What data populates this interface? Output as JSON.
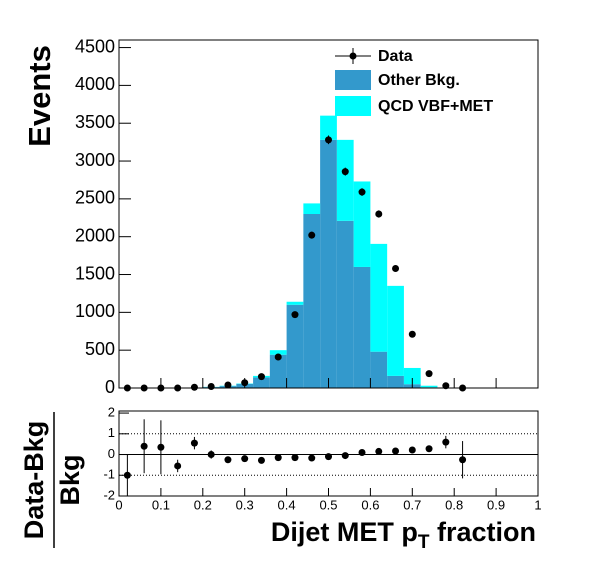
{
  "chart_data": [
    {
      "type": "histogram",
      "ylabel": "Events",
      "bins": [
        0,
        0.04,
        0.08,
        0.12,
        0.16,
        0.2,
        0.24,
        0.28,
        0.32,
        0.36,
        0.4,
        0.44,
        0.48,
        0.52,
        0.56,
        0.6,
        0.64,
        0.68,
        0.72,
        0.76,
        0.8,
        0.84,
        0.88,
        0.92,
        0.96,
        1
      ],
      "xlim": [
        0,
        1
      ],
      "xticks": [
        0,
        0.1,
        0.2,
        0.3,
        0.4,
        0.5,
        0.6,
        0.7,
        0.8,
        0.9,
        1
      ],
      "ylim": [
        0,
        4600
      ],
      "yticks": [
        0,
        500,
        1000,
        1500,
        2000,
        2500,
        3000,
        3500,
        4000,
        4500
      ],
      "stacked": true,
      "legend": "upper right",
      "series": [
        {
          "name": "Other Bkg.",
          "color": "#3399cc",
          "values": [
            0,
            0,
            0,
            0,
            5,
            12,
            25,
            55,
            140,
            440,
            1100,
            2300,
            3280,
            2210,
            1600,
            480,
            160,
            50,
            10,
            0,
            0,
            0,
            0,
            0,
            0
          ]
        },
        {
          "name": "QCD VBF+MET",
          "color": "#00ffff",
          "values": [
            0,
            0,
            0,
            0,
            0,
            3,
            5,
            5,
            20,
            60,
            40,
            140,
            320,
            1070,
            1130,
            1425,
            1190,
            215,
            20,
            5,
            0,
            0,
            0,
            0,
            0
          ]
        }
      ],
      "data": {
        "name": "Data",
        "color": "#000000",
        "x": [
          0.02,
          0.06,
          0.1,
          0.14,
          0.18,
          0.22,
          0.26,
          0.3,
          0.34,
          0.38,
          0.42,
          0.46,
          0.5,
          0.54,
          0.58,
          0.62,
          0.66,
          0.7,
          0.74,
          0.78,
          0.82
        ],
        "values": [
          0,
          0,
          0,
          0,
          10,
          20,
          40,
          70,
          150,
          410,
          970,
          2020,
          3280,
          2860,
          2590,
          2300,
          1580,
          710,
          190,
          30,
          0
        ],
        "errors": [
          0,
          0,
          0,
          0,
          3,
          4,
          6,
          8,
          12,
          20,
          31,
          45,
          57,
          53,
          51,
          48,
          40,
          27,
          14,
          5,
          0
        ]
      }
    },
    {
      "type": "scatter",
      "ylabel_numerator": "Data-Bkg",
      "ylabel_denominator": "Bkg",
      "xlabel_parts": [
        "Dijet MET p",
        "T",
        " fraction"
      ],
      "x": [
        0.02,
        0.06,
        0.1,
        0.14,
        0.18,
        0.22,
        0.26,
        0.3,
        0.34,
        0.38,
        0.42,
        0.46,
        0.5,
        0.54,
        0.58,
        0.62,
        0.66,
        0.7,
        0.74,
        0.78,
        0.82
      ],
      "values": [
        -1,
        0.4,
        0.35,
        -0.55,
        0.55,
        0,
        -0.25,
        -0.2,
        -0.28,
        -0.15,
        -0.15,
        -0.17,
        -0.1,
        -0.05,
        0.1,
        0.15,
        0.17,
        0.22,
        0.28,
        0.6,
        -0.25
      ],
      "errors": [
        1,
        1.3,
        1.3,
        0.3,
        0.3,
        0.2,
        0.1,
        0.08,
        0.07,
        0.05,
        0.04,
        0.03,
        0.03,
        0.03,
        0.03,
        0.03,
        0.03,
        0.04,
        0.08,
        0.3,
        0.9
      ],
      "color": "#000000",
      "xlim": [
        0,
        1
      ],
      "xticks": [
        0,
        0.1,
        0.2,
        0.3,
        0.4,
        0.5,
        0.6,
        0.7,
        0.8,
        0.9,
        1
      ],
      "ylim": [
        -2,
        2.1
      ],
      "yticks": [
        -2,
        -1,
        0,
        1,
        2
      ],
      "dotted_lines": [
        -1,
        1
      ],
      "zero_line": 0
    }
  ]
}
